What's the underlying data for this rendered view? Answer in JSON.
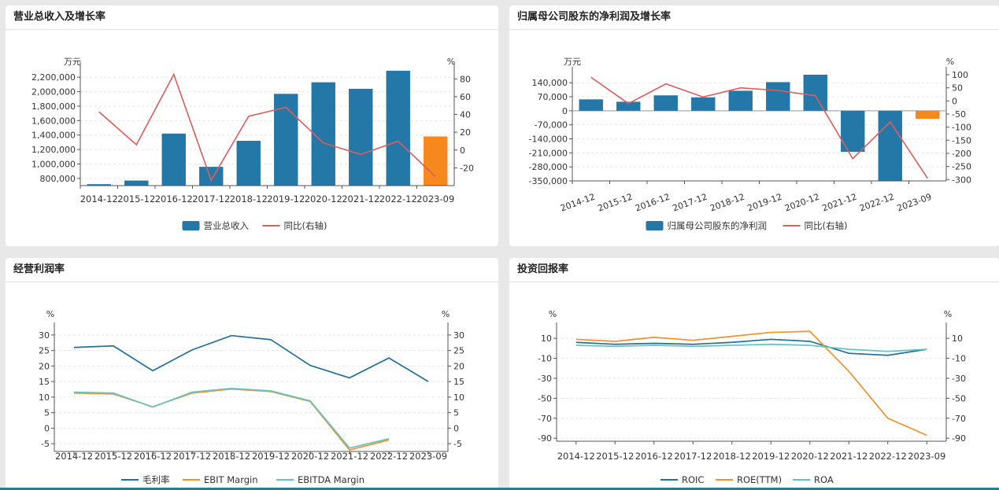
{
  "colors": {
    "bar_blue": "#2378a8",
    "bar_orange": "#f7881e",
    "line_red": "#e05c5c",
    "line_dark_blue": "#22709e",
    "line_orange": "#f4912b",
    "line_teal": "#63c3c3",
    "grid": "#e6e6e6",
    "axis": "#555555"
  },
  "panels": [
    {
      "title": "营业总收入及增长率"
    },
    {
      "title": "归属母公司股东的净利润及增长率"
    },
    {
      "title": "经营利润率"
    },
    {
      "title": "投资回报率"
    }
  ],
  "chart_data": [
    {
      "type": "bar",
      "title": "营业总收入及增长率",
      "y_unit_left": "万元",
      "y_unit_right": "%",
      "categories": [
        "2014-12",
        "2015-12",
        "2016-12",
        "2017-12",
        "2018-12",
        "2019-12",
        "2020-12",
        "2021-12",
        "2022-12",
        "2023-09"
      ],
      "y_ticks_left": [
        800000,
        1000000,
        1200000,
        1400000,
        1600000,
        1800000,
        2000000,
        2200000
      ],
      "y_tick_labels_left": [
        "800,000",
        "1,000,000",
        "1,200,000",
        "1,400,000",
        "1,600,000",
        "1,800,000",
        "2,000,000",
        "2,200,000"
      ],
      "ylim_left": [
        700000,
        2300000
      ],
      "y_ticks_right": [
        -20,
        0,
        20,
        40,
        60,
        80
      ],
      "ylim_right": [
        -40,
        90
      ],
      "series": [
        {
          "name": "营业总收入",
          "kind": "bar",
          "values": [
            720000,
            770000,
            1420000,
            960000,
            1320000,
            1970000,
            2130000,
            2040000,
            2290000,
            1380000
          ],
          "highlight_last": true
        },
        {
          "name": "同比(右轴)",
          "kind": "line",
          "axis": "right",
          "values": [
            43,
            6,
            85,
            -34,
            38,
            48,
            8,
            -5,
            10,
            -30
          ]
        }
      ],
      "legend_position": "bottom"
    },
    {
      "type": "bar",
      "title": "归属母公司股东的净利润及增长率",
      "y_unit_left": "万元",
      "y_unit_right": "%",
      "categories": [
        "2014-12",
        "2015-12",
        "2016-12",
        "2017-12",
        "2018-12",
        "2019-12",
        "2020-12",
        "2021-12",
        "2022-12",
        "2023-09"
      ],
      "y_ticks_left": [
        -350000,
        -280000,
        -210000,
        -140000,
        -70000,
        0,
        70000,
        140000
      ],
      "y_tick_labels_left": [
        "-350,000",
        "-280,000",
        "-210,000",
        "-140,000",
        "-70,000",
        "0",
        "70,000",
        "140,000"
      ],
      "ylim_left": [
        -350000,
        180000
      ],
      "y_ticks_right": [
        -300,
        -250,
        -200,
        -150,
        -100,
        -50,
        0,
        50,
        100
      ],
      "ylim_right": [
        -305,
        100
      ],
      "series": [
        {
          "name": "归属母公司股东的净利润",
          "kind": "bar",
          "values": [
            57000,
            45000,
            77000,
            67000,
            100000,
            143000,
            180000,
            -205000,
            -350000,
            -40000
          ],
          "highlight_last": true
        },
        {
          "name": "同比(右轴)",
          "kind": "line",
          "axis": "right",
          "values": [
            90,
            -10,
            65,
            15,
            50,
            40,
            20,
            -220,
            -80,
            -295
          ]
        }
      ],
      "legend_position": "bottom"
    },
    {
      "type": "line",
      "title": "经营利润率",
      "y_unit_left": "%",
      "y_unit_right": "%",
      "categories": [
        "2014-12",
        "2015-12",
        "2016-12",
        "2017-12",
        "2018-12",
        "2019-12",
        "2020-12",
        "2021-12",
        "2022-12",
        "2023-09"
      ],
      "y_ticks": [
        -5,
        0,
        5,
        10,
        15,
        20,
        25,
        30
      ],
      "ylim": [
        -7.5,
        31.5
      ],
      "series": [
        {
          "name": "毛利率",
          "values": [
            26.0,
            26.5,
            18.5,
            25.2,
            29.8,
            28.5,
            20.2,
            16.2,
            22.6,
            15.0
          ]
        },
        {
          "name": "EBIT Margin",
          "values": [
            11.3,
            11.0,
            6.9,
            11.3,
            12.6,
            11.8,
            8.6,
            -7.0,
            -3.8,
            null
          ]
        },
        {
          "name": "EBITDA Margin",
          "values": [
            11.6,
            11.3,
            6.8,
            11.6,
            12.8,
            12.0,
            8.8,
            -6.4,
            -3.4,
            null
          ]
        }
      ],
      "legend_position": "bottom"
    },
    {
      "type": "line",
      "title": "投资回报率",
      "y_unit_left": "%",
      "y_unit_right": "%",
      "categories": [
        "2014-12",
        "2015-12",
        "2016-12",
        "2017-12",
        "2018-12",
        "2019-12",
        "2020-12",
        "2021-12",
        "2022-12",
        "2023-09"
      ],
      "y_ticks": [
        -90,
        -70,
        -50,
        -30,
        -10,
        10
      ],
      "ylim": [
        -93,
        18
      ],
      "series": [
        {
          "name": "ROIC",
          "values": [
            6,
            4,
            5,
            4,
            6,
            9,
            7,
            -5,
            -7,
            -1
          ]
        },
        {
          "name": "ROE(TTM)",
          "values": [
            9,
            7,
            11,
            8,
            12,
            16,
            17,
            -23,
            -70,
            -87
          ]
        },
        {
          "name": "ROA",
          "values": [
            3,
            2,
            3,
            2,
            3,
            4,
            3,
            -1,
            -3,
            -1
          ]
        }
      ],
      "legend_position": "bottom"
    }
  ]
}
